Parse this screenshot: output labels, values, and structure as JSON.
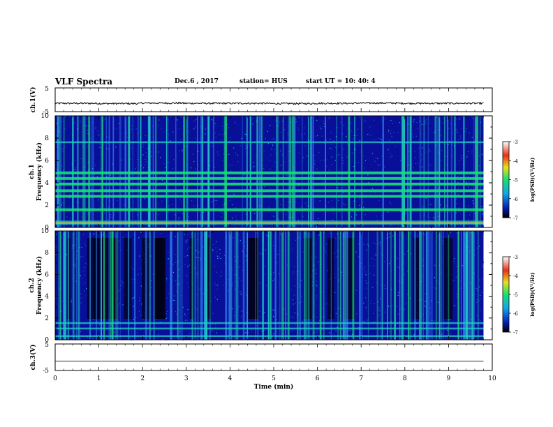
{
  "header": {
    "title": "VLF Spectra",
    "date": "Dec.6  , 2017",
    "station": "station= HUS",
    "start": "start  UT  =   10: 40: 4"
  },
  "chart_data": [
    {
      "type": "line",
      "panel": "ch1-waveform",
      "ylabel": "ch.1(V)",
      "ylim": [
        -5,
        5
      ],
      "yticks": [
        "5",
        "-5"
      ],
      "xlim": [
        0,
        10
      ],
      "series": [
        {
          "values": [
            -1.5,
            -1.6,
            -1.4,
            -1.5,
            -1.5,
            -1.6,
            -1.5,
            -1.4,
            -1.5,
            -1.5
          ]
        }
      ]
    },
    {
      "type": "heatmap",
      "panel": "ch1-spectrogram",
      "ylabel": "ch.1 Frequency (kHz)",
      "ylim": [
        0,
        10
      ],
      "yticks": [
        "0",
        "2",
        "4",
        "6",
        "8",
        "10"
      ],
      "xlim": [
        0,
        10
      ],
      "bands_khz": [
        0.3,
        0.5,
        1.6,
        2.8,
        3.3,
        3.9,
        4.4,
        4.9,
        7.6
      ],
      "colorbar": {
        "label": "log(PSD)(V²/Hz)",
        "ticks": [
          "-3",
          "-4",
          "-5",
          "-6",
          "-7"
        ],
        "range": [
          -7,
          -3
        ]
      }
    },
    {
      "type": "heatmap",
      "panel": "ch2-spectrogram",
      "ylabel": "ch.2 Frequency (kHz)",
      "ylim": [
        0,
        10
      ],
      "yticks": [
        "0",
        "2",
        "4",
        "6",
        "8",
        "10"
      ],
      "xlim": [
        0,
        10
      ],
      "bands_khz": [
        0.3,
        1.0,
        1.5
      ],
      "colorbar": {
        "label": "log(PSD)(V²/Hz)",
        "ticks": [
          "-3",
          "-4",
          "-5",
          "-6",
          "-7"
        ],
        "range": [
          -7,
          -3
        ]
      }
    },
    {
      "type": "line",
      "panel": "ch3-waveform",
      "ylabel": "ch.3(V)",
      "ylim": [
        -5,
        5
      ],
      "yticks": [
        "5",
        "-5"
      ],
      "xlim": [
        0,
        10
      ],
      "series": [
        {
          "values": [
            -1.5,
            -1.5,
            -1.5,
            -1.5,
            -1.5,
            -1.5,
            -1.5,
            -1.5,
            -1.5,
            -1.5
          ]
        }
      ]
    }
  ],
  "x_axis": {
    "label": "Time (min)",
    "ticks": [
      "0",
      "1",
      "2",
      "3",
      "4",
      "5",
      "6",
      "7",
      "8",
      "9",
      "10"
    ]
  },
  "colors": {
    "axis": "#000000",
    "waveform": "#111111",
    "spectrogram_background": "#08109a",
    "band": "#22d0c8",
    "band_strong": "#19e07a"
  }
}
